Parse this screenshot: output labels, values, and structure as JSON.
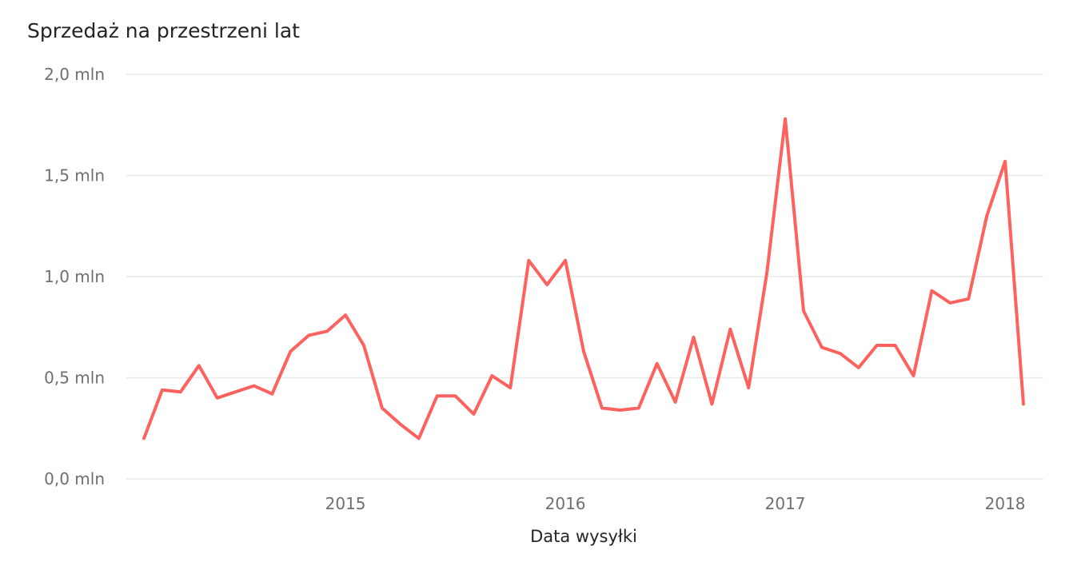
{
  "chart_data": {
    "type": "line",
    "title": "Sprzedaż na przestrzeni lat",
    "xlabel": "Data wysyłki",
    "ylabel": "",
    "ylim": [
      0,
      2.0
    ],
    "y_unit": "mln",
    "y_ticks": [
      0,
      0.5,
      1.0,
      1.5,
      2.0
    ],
    "y_tick_labels": [
      "0,0 mln",
      "0,5 mln",
      "1,0 mln",
      "1,5 mln",
      "2,0 mln"
    ],
    "x_ticks": [
      "2015",
      "2016",
      "2017",
      "2018"
    ],
    "x_tick_dates": [
      "2015-01",
      "2016-01",
      "2017-01",
      "2018-01"
    ],
    "grid": true,
    "legend": "none",
    "color": "#FD625E",
    "series": [
      {
        "x": [
          "2014-02",
          "2014-03",
          "2014-04",
          "2014-05",
          "2014-06",
          "2014-07",
          "2014-08",
          "2014-09",
          "2014-10",
          "2014-11",
          "2014-12",
          "2015-01",
          "2015-02",
          "2015-03",
          "2015-04",
          "2015-05",
          "2015-06",
          "2015-07",
          "2015-08",
          "2015-09",
          "2015-10",
          "2015-11",
          "2015-12",
          "2016-01",
          "2016-02",
          "2016-03",
          "2016-04",
          "2016-05",
          "2016-06",
          "2016-07",
          "2016-08",
          "2016-09",
          "2016-10",
          "2016-11",
          "2016-12",
          "2017-01",
          "2017-02",
          "2017-03",
          "2017-04",
          "2017-05",
          "2017-06",
          "2017-07",
          "2017-08",
          "2017-09",
          "2017-10",
          "2017-11",
          "2017-12",
          "2018-01",
          "2018-02"
        ],
        "values": [
          0.2,
          0.44,
          0.43,
          0.56,
          0.4,
          0.43,
          0.46,
          0.42,
          0.63,
          0.71,
          0.73,
          0.81,
          0.66,
          0.35,
          0.27,
          0.2,
          0.41,
          0.41,
          0.32,
          0.51,
          0.45,
          1.08,
          0.96,
          1.08,
          0.63,
          0.35,
          0.34,
          0.35,
          0.57,
          0.38,
          0.7,
          0.37,
          0.74,
          0.45,
          1.02,
          1.78,
          0.83,
          0.65,
          0.62,
          0.55,
          0.66,
          0.66,
          0.51,
          0.93,
          0.87,
          0.89,
          1.3,
          1.57,
          0.37
        ]
      }
    ]
  }
}
